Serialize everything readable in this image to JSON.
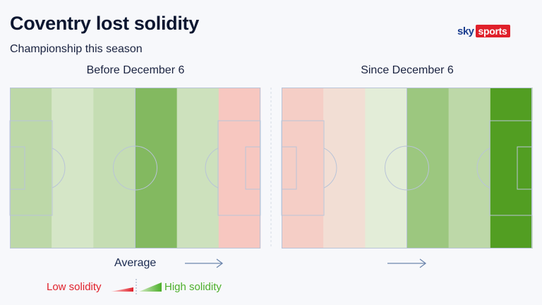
{
  "header": {
    "title": "Coventry lost solidity",
    "subtitle": "Championship this season"
  },
  "logo": {
    "sky": "sky",
    "sports": "sports"
  },
  "chart_data": {
    "type": "heatmap",
    "title": "Coventry lost solidity",
    "subtitle": "Championship this season",
    "scale": {
      "min": -1,
      "max": 1,
      "low_label": "Low solidity",
      "high_label": "High solidity",
      "mid_label": "Average"
    },
    "direction_of_play": "left-to-right",
    "pitches": [
      {
        "name": "before",
        "label": "Before December 6",
        "zones": [
          0.3,
          0.15,
          0.25,
          0.65,
          0.2,
          -0.5
        ]
      },
      {
        "name": "since",
        "label": "Since December 6",
        "zones": [
          -0.42,
          -0.24,
          0.07,
          0.5,
          0.3,
          0.95
        ]
      }
    ]
  },
  "colors": {
    "low": "#ff9a9a",
    "neutral": "#eef3e6",
    "high": "#4a9a18",
    "line": "#b9c4d8",
    "arrow": "#6d86ad",
    "low_text": "#e0202a",
    "high_text": "#4caf2a"
  },
  "legend": {
    "average_label": "Average",
    "low_label": "Low solidity",
    "high_label": "High solidity"
  }
}
